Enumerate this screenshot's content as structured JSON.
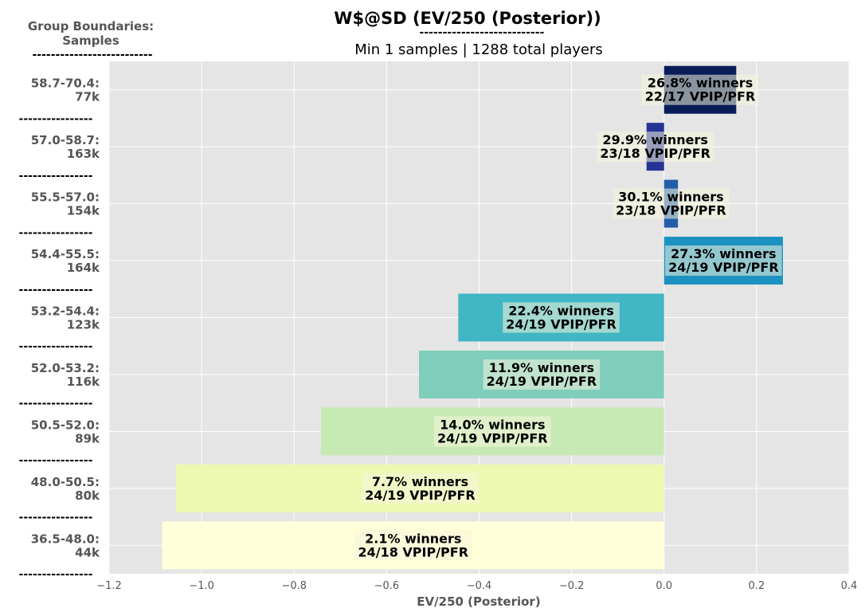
{
  "chart_data": {
    "type": "bar",
    "orientation": "horizontal",
    "title": "W$@SD (EV/250 (Posterior))",
    "title_underline": "---------------------------",
    "subtitle": "Min 1 samples | 1288 total players",
    "ylabel_head": [
      "Group Boundaries:",
      "Samples"
    ],
    "ylabel_underline": "--------------------------",
    "separator": "----------------",
    "xlabel": "EV/250 (Posterior)",
    "xlim": [
      -1.2,
      0.4
    ],
    "xticks": [
      -1.2,
      -1.0,
      -0.8,
      -0.6,
      -0.4,
      -0.2,
      0.0,
      0.2,
      0.4
    ],
    "xtick_labels": [
      "−1.2",
      "−1.0",
      "−0.8",
      "−0.6",
      "−0.4",
      "−0.2",
      "0.0",
      "0.2",
      "0.4"
    ],
    "grid": true,
    "bars": [
      {
        "range": "58.7-70.4:",
        "samples": "77k",
        "value": 0.156,
        "color": "#081d58",
        "line1": "26.8% winners",
        "line2": "22/17 VPIP/PFR"
      },
      {
        "range": "57.0-58.7:",
        "samples": "163k",
        "value": -0.038,
        "color": "#253494",
        "line1": "29.9% winners",
        "line2": "23/18 VPIP/PFR"
      },
      {
        "range": "55.5-57.0:",
        "samples": "154k",
        "value": 0.03,
        "color": "#225ea8",
        "line1": "30.1% winners",
        "line2": "23/18 VPIP/PFR"
      },
      {
        "range": "54.4-55.5:",
        "samples": "164k",
        "value": 0.257,
        "color": "#1d91c0",
        "line1": "27.3% winners",
        "line2": "24/19 VPIP/PFR"
      },
      {
        "range": "53.2-54.4:",
        "samples": "123k",
        "value": -0.445,
        "color": "#41b6c4",
        "line1": "22.4% winners",
        "line2": "24/19 VPIP/PFR"
      },
      {
        "range": "52.0-53.2:",
        "samples": "116k",
        "value": -0.53,
        "color": "#7fcdbb",
        "line1": "11.9% winners",
        "line2": "24/19 VPIP/PFR"
      },
      {
        "range": "50.5-52.0:",
        "samples": "89k",
        "value": -0.742,
        "color": "#c7e9b4",
        "line1": "14.0% winners",
        "line2": "24/19 VPIP/PFR"
      },
      {
        "range": "48.0-50.5:",
        "samples": "80k",
        "value": -1.055,
        "color": "#edf8b1",
        "line1": "7.7% winners",
        "line2": "24/19 VPIP/PFR"
      },
      {
        "range": "36.5-48.0:",
        "samples": "44k",
        "value": -1.085,
        "color": "#ffffd9",
        "line1": "2.1% winners",
        "line2": "24/18 VPIP/PFR"
      }
    ]
  }
}
